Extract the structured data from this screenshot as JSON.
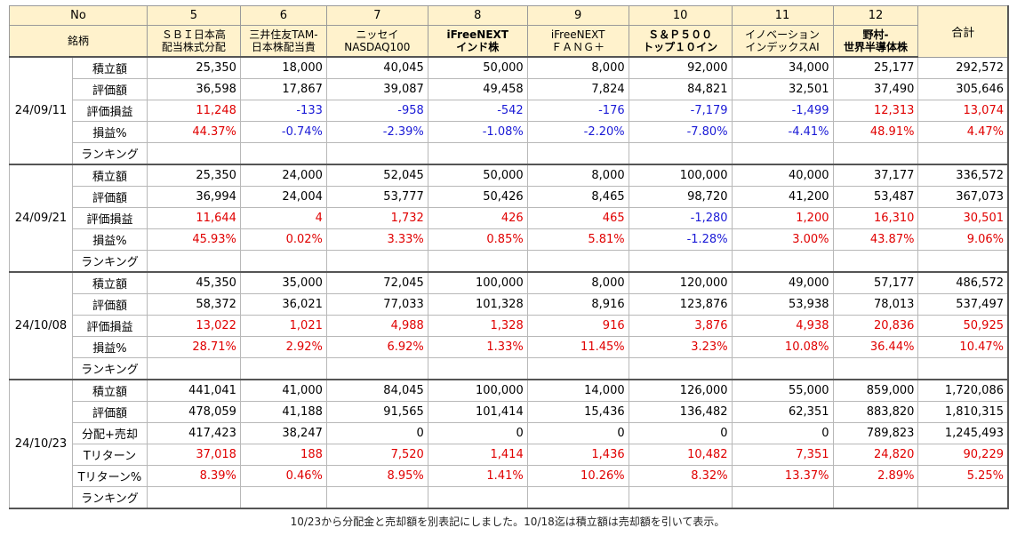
{
  "header": {
    "no_label": "No",
    "name_label": "銘柄",
    "total_label": "合計",
    "funds": [
      {
        "no": "5",
        "name1": "ＳＢＩ日本高",
        "name2": "配当株式分配",
        "bold": false
      },
      {
        "no": "6",
        "name1": "三井住友TAM-",
        "name2": "日本株配当貴",
        "bold": false
      },
      {
        "no": "7",
        "name1": "ニッセイ",
        "name2": "NASDAQ100",
        "bold": false
      },
      {
        "no": "8",
        "name1": "iFreeNEXT",
        "name2": "インド株",
        "bold": true
      },
      {
        "no": "9",
        "name1": "iFreeNEXT",
        "name2": "ＦＡＮＧ＋",
        "bold": false
      },
      {
        "no": "10",
        "name1": "Ｓ＆Ｐ５００",
        "name2": "トップ１０イン",
        "bold": true
      },
      {
        "no": "11",
        "name1": "イノベーション",
        "name2": "インデックスAI",
        "bold": false
      },
      {
        "no": "12",
        "name1": "野村-",
        "name2": "世界半導体株",
        "bold": true
      }
    ]
  },
  "colors": {
    "positive": "#e00000",
    "negative": "#1a1ad6",
    "header_bg": "#fff2cc"
  },
  "groups": [
    {
      "date": "24/09/11",
      "rows": [
        {
          "label": "積立額",
          "values": [
            "25,350",
            "18,000",
            "40,045",
            "50,000",
            "8,000",
            "92,000",
            "34,000",
            "25,177",
            "292,572"
          ]
        },
        {
          "label": "評価額",
          "values": [
            "36,598",
            "17,867",
            "39,087",
            "49,458",
            "7,824",
            "84,821",
            "32,501",
            "37,490",
            "305,646"
          ]
        },
        {
          "label": "評価損益",
          "values": [
            "11,248",
            "-133",
            "-958",
            "-542",
            "-176",
            "-7,179",
            "-1,499",
            "12,313",
            "13,074"
          ]
        },
        {
          "label": "損益%",
          "values": [
            "44.37%",
            "-0.74%",
            "-2.39%",
            "-1.08%",
            "-2.20%",
            "-7.80%",
            "-4.41%",
            "48.91%",
            "4.47%"
          ]
        },
        {
          "label": "ランキング",
          "values": [
            "",
            "",
            "",
            "",
            "",
            "",
            "",
            "",
            ""
          ]
        }
      ]
    },
    {
      "date": "24/09/21",
      "rows": [
        {
          "label": "積立額",
          "values": [
            "25,350",
            "24,000",
            "52,045",
            "50,000",
            "8,000",
            "100,000",
            "40,000",
            "37,177",
            "336,572"
          ]
        },
        {
          "label": "評価額",
          "values": [
            "36,994",
            "24,004",
            "53,777",
            "50,426",
            "8,465",
            "98,720",
            "41,200",
            "53,487",
            "367,073"
          ]
        },
        {
          "label": "評価損益",
          "values": [
            "11,644",
            "4",
            "1,732",
            "426",
            "465",
            "-1,280",
            "1,200",
            "16,310",
            "30,501"
          ]
        },
        {
          "label": "損益%",
          "values": [
            "45.93%",
            "0.02%",
            "3.33%",
            "0.85%",
            "5.81%",
            "-1.28%",
            "3.00%",
            "43.87%",
            "9.06%"
          ]
        },
        {
          "label": "ランキング",
          "values": [
            "",
            "",
            "",
            "",
            "",
            "",
            "",
            "",
            ""
          ]
        }
      ]
    },
    {
      "date": "24/10/08",
      "rows": [
        {
          "label": "積立額",
          "values": [
            "45,350",
            "35,000",
            "72,045",
            "100,000",
            "8,000",
            "120,000",
            "49,000",
            "57,177",
            "486,572"
          ]
        },
        {
          "label": "評価額",
          "values": [
            "58,372",
            "36,021",
            "77,033",
            "101,328",
            "8,916",
            "123,876",
            "53,938",
            "78,013",
            "537,497"
          ]
        },
        {
          "label": "評価損益",
          "values": [
            "13,022",
            "1,021",
            "4,988",
            "1,328",
            "916",
            "3,876",
            "4,938",
            "20,836",
            "50,925"
          ]
        },
        {
          "label": "損益%",
          "values": [
            "28.71%",
            "2.92%",
            "6.92%",
            "1.33%",
            "11.45%",
            "3.23%",
            "10.08%",
            "36.44%",
            "10.47%"
          ]
        },
        {
          "label": "ランキング",
          "values": [
            "",
            "",
            "",
            "",
            "",
            "",
            "",
            "",
            ""
          ]
        }
      ]
    },
    {
      "date": "24/10/23",
      "rows": [
        {
          "label": "積立額",
          "values": [
            "441,041",
            "41,000",
            "84,045",
            "100,000",
            "14,000",
            "126,000",
            "55,000",
            "859,000",
            "1,720,086"
          ]
        },
        {
          "label": "評価額",
          "values": [
            "478,059",
            "41,188",
            "91,565",
            "101,414",
            "15,436",
            "136,482",
            "62,351",
            "883,820",
            "1,810,315"
          ]
        },
        {
          "label": "分配+売却",
          "values": [
            "417,423",
            "38,247",
            "0",
            "0",
            "0",
            "0",
            "0",
            "789,823",
            "1,245,493"
          ]
        },
        {
          "label": "Tリターン",
          "values": [
            "37,018",
            "188",
            "7,520",
            "1,414",
            "1,436",
            "10,482",
            "7,351",
            "24,820",
            "90,229"
          ]
        },
        {
          "label": "Tリターン%",
          "values": [
            "8.39%",
            "0.46%",
            "8.95%",
            "1.41%",
            "10.26%",
            "8.32%",
            "13.37%",
            "2.89%",
            "5.25%"
          ]
        },
        {
          "label": "ランキング",
          "values": [
            "",
            "",
            "",
            "",
            "",
            "",
            "",
            "",
            ""
          ]
        }
      ]
    }
  ],
  "note": "10/23から分配金と売却額を別表記にしました。10/18迄は積立額は売却額を引いて表示。"
}
